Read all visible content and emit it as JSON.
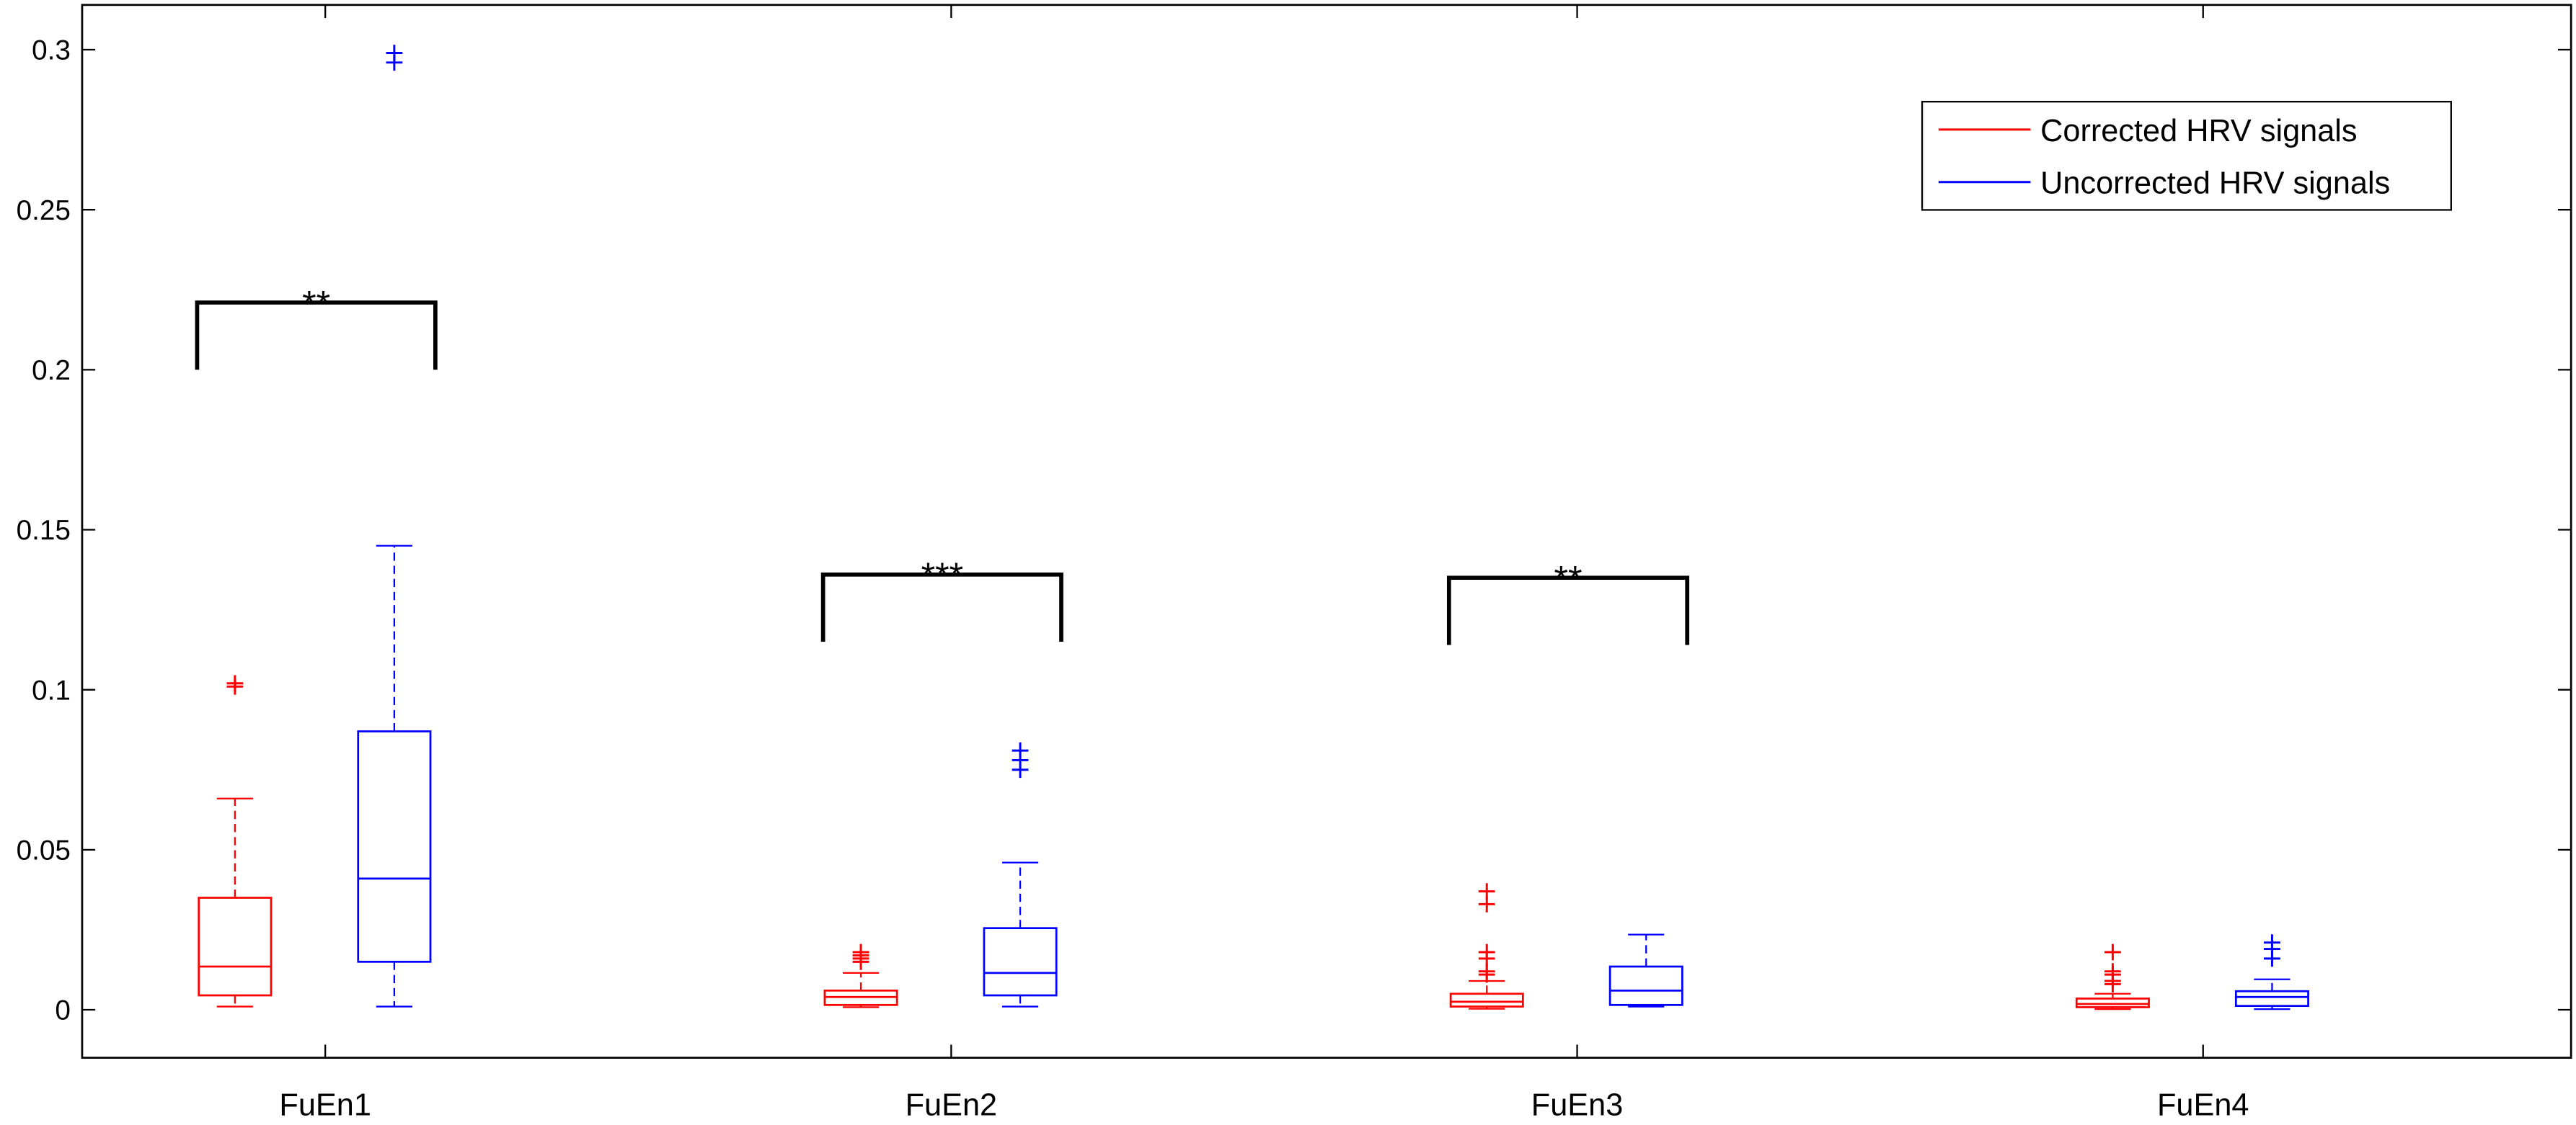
{
  "chart_data": {
    "type": "boxplot",
    "categories": [
      "FuEn1",
      "FuEn2",
      "FuEn3",
      "FuEn4"
    ],
    "series": [
      {
        "name": "Corrected HRV signals",
        "color": "#ff0000",
        "boxes": [
          {
            "whisker_low": 0.001,
            "q1": 0.0045,
            "median": 0.0135,
            "q3": 0.035,
            "whisker_high": 0.066,
            "outliers": [
              0.101,
              0.102
            ]
          },
          {
            "whisker_low": 0.0008,
            "q1": 0.0015,
            "median": 0.004,
            "q3": 0.006,
            "whisker_high": 0.0115,
            "outliers": [
              0.015,
              0.016,
              0.017,
              0.018
            ]
          },
          {
            "whisker_low": 0.0003,
            "q1": 0.001,
            "median": 0.0025,
            "q3": 0.005,
            "whisker_high": 0.009,
            "outliers": [
              0.011,
              0.012,
              0.016,
              0.018,
              0.033,
              0.037
            ]
          },
          {
            "whisker_low": 0.0002,
            "q1": 0.0008,
            "median": 0.0018,
            "q3": 0.0035,
            "whisker_high": 0.005,
            "outliers": [
              0.008,
              0.009,
              0.011,
              0.012,
              0.018
            ]
          }
        ]
      },
      {
        "name": "Uncorrected HRV signals",
        "color": "#0000ff",
        "boxes": [
          {
            "whisker_low": 0.001,
            "q1": 0.015,
            "median": 0.041,
            "q3": 0.087,
            "whisker_high": 0.145,
            "outliers": [
              0.296,
              0.299
            ]
          },
          {
            "whisker_low": 0.001,
            "q1": 0.0045,
            "median": 0.0115,
            "q3": 0.0255,
            "whisker_high": 0.046,
            "outliers": [
              0.075,
              0.078,
              0.081
            ]
          },
          {
            "whisker_low": 0.001,
            "q1": 0.0015,
            "median": 0.006,
            "q3": 0.0135,
            "whisker_high": 0.0235,
            "outliers": []
          },
          {
            "whisker_low": 0.0002,
            "q1": 0.0012,
            "median": 0.004,
            "q3": 0.0058,
            "whisker_high": 0.0095,
            "outliers": [
              0.016,
              0.019,
              0.021
            ]
          }
        ]
      }
    ],
    "annotations": [
      {
        "text": "**",
        "category": "FuEn1",
        "y": 0.221,
        "y_low": 0.2
      },
      {
        "text": "***",
        "category": "FuEn2",
        "y": 0.136,
        "y_low": 0.115
      },
      {
        "text": "**",
        "category": "FuEn3",
        "y": 0.135,
        "y_low": 0.114
      }
    ],
    "ylim": [
      -0.015,
      0.314
    ],
    "yticks": [
      0,
      0.05,
      0.1,
      0.15,
      0.2,
      0.25,
      0.3
    ],
    "legend": "upper right"
  }
}
